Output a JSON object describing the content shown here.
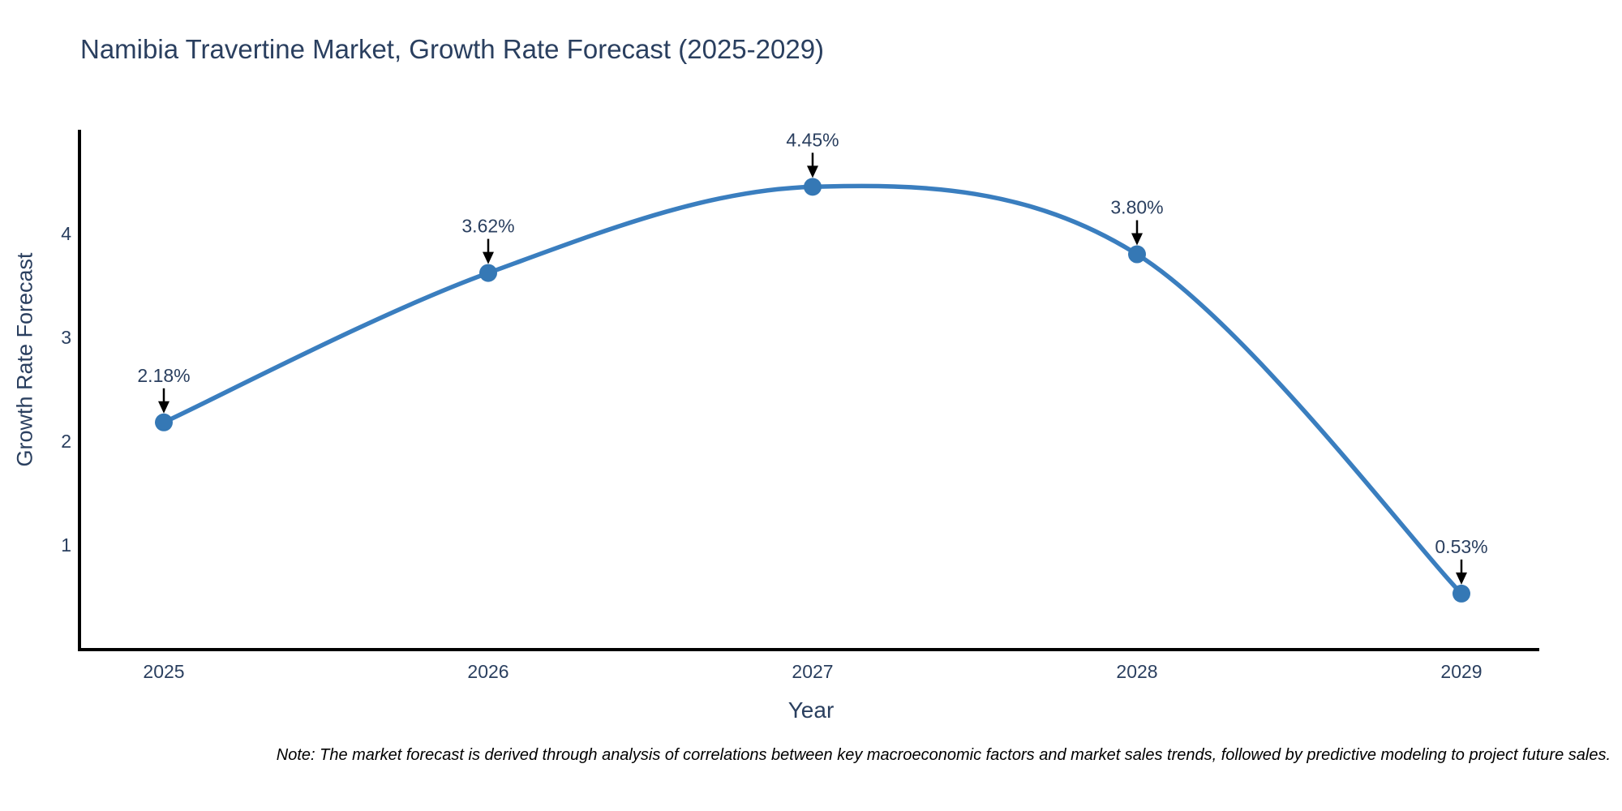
{
  "chart_data": {
    "type": "line",
    "title": "Namibia Travertine Market, Growth Rate Forecast (2025-2029)",
    "xlabel": "Year",
    "ylabel": "Growth Rate Forecast",
    "x": [
      2025,
      2026,
      2027,
      2028,
      2029
    ],
    "values": [
      2.18,
      3.62,
      4.45,
      3.8,
      0.53
    ],
    "point_labels": [
      "2.18%",
      "3.62%",
      "4.45%",
      "3.80%",
      "0.53%"
    ],
    "xticks": [
      2025,
      2026,
      2027,
      2028,
      2029
    ],
    "yticks": [
      1,
      2,
      3,
      4
    ],
    "xlim": [
      2024.74,
      2029.24
    ],
    "ylim": [
      -0.01,
      5.0
    ],
    "line_shape": "spline",
    "grid": false,
    "legend_position": "none",
    "line_color": "#3a7ebf",
    "marker_color": "#3578b5",
    "annotation_arrow_color": "#000000",
    "axis_line_color": "#000000",
    "text_color": "#2a3f5f"
  },
  "note": "Note: The market forecast is derived through analysis of correlations between key macroeconomic factors and market sales trends, followed by predictive modeling to project future sales."
}
